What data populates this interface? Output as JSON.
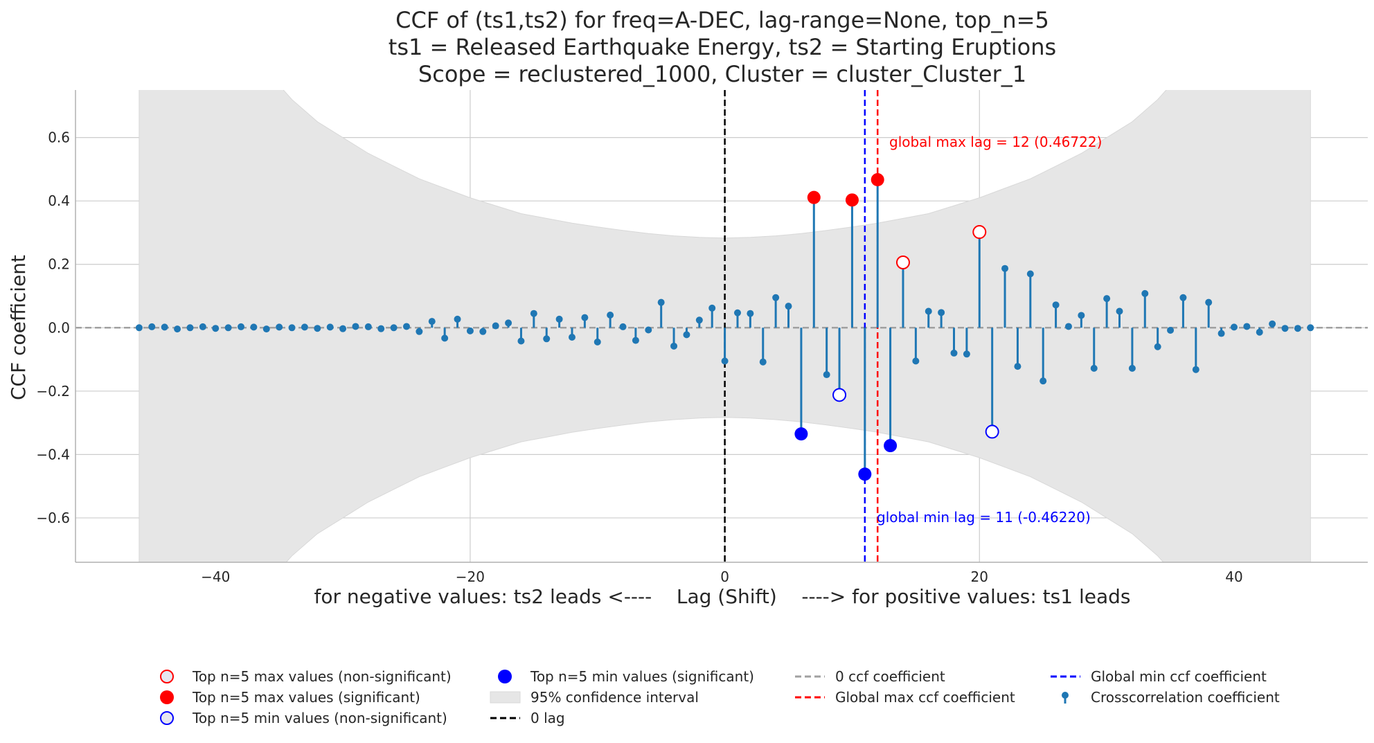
{
  "chart_data": {
    "type": "stem",
    "title": [
      "CCF of (ts1,ts2) for freq=A-DEC, lag-range=None, top_n=5",
      "ts1 = Released Earthquake Energy, ts2 = Starting Eruptions",
      "Scope = reclustered_1000, Cluster = cluster_Cluster_1"
    ],
    "xlabel": "for negative values: ts2 leads <----    Lag (Shift)    ----> for positive values: ts1 leads",
    "ylabel": "CCF coefficient",
    "xlim": [
      -51,
      50.5
    ],
    "ylim": [
      -0.74,
      0.75
    ],
    "xticks": [
      -40,
      -20,
      0,
      20,
      40
    ],
    "yticks": [
      -0.6,
      -0.4,
      -0.2,
      0.0,
      0.2,
      0.4,
      0.6
    ],
    "xtick_labels": [
      "−40",
      "−20",
      "0",
      "20",
      "40"
    ],
    "ytick_labels": [
      "−0.6",
      "−0.4",
      "−0.2",
      "0.0",
      "0.2",
      "0.4",
      "0.6"
    ],
    "grid": true,
    "colors": {
      "stem": "#1f77b4",
      "sig_max": "#ff0000",
      "sig_min": "#0000ff",
      "ci_fill": "#e6e6e6",
      "zero_line": "#a0a0a0",
      "zero_lag": "#000000",
      "grid": "#cccccc"
    },
    "lags": [
      -46,
      -45,
      -44,
      -43,
      -42,
      -41,
      -40,
      -39,
      -38,
      -37,
      -36,
      -35,
      -34,
      -33,
      -32,
      -31,
      -30,
      -29,
      -28,
      -27,
      -26,
      -25,
      -24,
      -23,
      -22,
      -21,
      -20,
      -19,
      -18,
      -17,
      -16,
      -15,
      -14,
      -13,
      -12,
      -11,
      -10,
      -9,
      -8,
      -7,
      -6,
      -5,
      -4,
      -3,
      -2,
      -1,
      0,
      1,
      2,
      3,
      4,
      5,
      6,
      7,
      8,
      9,
      10,
      11,
      12,
      13,
      14,
      15,
      16,
      17,
      18,
      19,
      20,
      21,
      22,
      23,
      24,
      25,
      26,
      27,
      28,
      29,
      30,
      31,
      32,
      33,
      34,
      35,
      36,
      37,
      38,
      39,
      40,
      41,
      42,
      43,
      44,
      45,
      46
    ],
    "ccf": [
      0.0,
      0.003,
      0.002,
      -0.004,
      0.0,
      0.003,
      -0.002,
      0.0,
      0.003,
      0.002,
      -0.004,
      0.002,
      0.0,
      0.002,
      -0.002,
      0.002,
      -0.003,
      0.004,
      0.003,
      -0.003,
      0.0,
      0.004,
      -0.012,
      0.02,
      -0.033,
      0.027,
      -0.01,
      -0.012,
      0.006,
      0.015,
      -0.042,
      0.045,
      -0.035,
      0.027,
      -0.03,
      0.032,
      -0.045,
      0.04,
      0.003,
      -0.04,
      -0.007,
      0.08,
      -0.058,
      -0.022,
      0.024,
      0.062,
      -0.105,
      0.047,
      0.045,
      -0.108,
      0.095,
      0.068,
      -0.335,
      0.411,
      -0.148,
      -0.212,
      0.403,
      -0.462,
      0.467,
      -0.372,
      0.206,
      -0.105,
      0.052,
      0.048,
      -0.08,
      -0.083,
      0.302,
      -0.328,
      0.187,
      -0.122,
      0.17,
      -0.168,
      0.072,
      0.004,
      0.039,
      -0.128,
      0.092,
      0.052,
      -0.128,
      0.108,
      -0.06,
      -0.008,
      0.095,
      -0.132,
      0.08,
      -0.018,
      0.002,
      0.004,
      -0.014,
      0.012,
      -0.002,
      -0.002,
      0.0
    ],
    "confidence_interval_95": {
      "lags": [
        -46,
        -44,
        -42,
        -40,
        -38,
        -36,
        -34,
        -32,
        -30,
        -28,
        -26,
        -24,
        -22,
        -20,
        -18,
        -16,
        -14,
        -12,
        -10,
        -8,
        -6,
        -4,
        -2,
        0,
        2,
        4,
        6,
        8,
        10,
        12,
        14,
        16,
        18,
        20,
        22,
        24,
        26,
        28,
        30,
        32,
        34,
        36,
        38,
        40,
        42,
        44,
        46
      ],
      "upper": [
        1.2,
        1.2,
        1.2,
        1.09,
        0.92,
        0.81,
        0.72,
        0.65,
        0.6,
        0.55,
        0.51,
        0.47,
        0.44,
        0.41,
        0.385,
        0.36,
        0.345,
        0.33,
        0.318,
        0.307,
        0.297,
        0.29,
        0.285,
        0.283,
        0.285,
        0.29,
        0.297,
        0.307,
        0.318,
        0.33,
        0.345,
        0.36,
        0.385,
        0.41,
        0.44,
        0.47,
        0.51,
        0.55,
        0.6,
        0.65,
        0.72,
        0.81,
        0.92,
        1.09,
        1.2,
        1.2,
        1.2
      ]
    },
    "top_max_significant": [
      {
        "lag": 7,
        "value": 0.411
      },
      {
        "lag": 10,
        "value": 0.403
      },
      {
        "lag": 12,
        "value": 0.467
      }
    ],
    "top_max_nonsignificant": [
      {
        "lag": 14,
        "value": 0.206
      },
      {
        "lag": 20,
        "value": 0.302
      }
    ],
    "top_min_significant": [
      {
        "lag": 6,
        "value": -0.335
      },
      {
        "lag": 11,
        "value": -0.462
      },
      {
        "lag": 13,
        "value": -0.372
      }
    ],
    "top_min_nonsignificant": [
      {
        "lag": 9,
        "value": -0.212
      },
      {
        "lag": 21,
        "value": -0.328
      }
    ],
    "global_max": {
      "lag": 12,
      "label": "global max lag = 12 (0.46722)"
    },
    "global_min": {
      "lag": 11,
      "label": "global min lag = 11 (-0.46220)"
    },
    "legend": {
      "placement": "bottom",
      "entries": [
        {
          "key": "top_max_nonsig",
          "label": "Top n=5 max values (non-significant)"
        },
        {
          "key": "top_max_sig",
          "label": "Top n=5 max values (significant)"
        },
        {
          "key": "top_min_nonsig",
          "label": "Top n=5 min values (non-significant)"
        },
        {
          "key": "top_min_sig",
          "label": "Top n=5 min values (significant)"
        },
        {
          "key": "ci",
          "label": "95% confidence interval"
        },
        {
          "key": "zero_lag",
          "label": "0 lag"
        },
        {
          "key": "zero_ccf",
          "label": "0 ccf coefficient"
        },
        {
          "key": "global_max_line",
          "label": "Global max ccf coefficient"
        },
        {
          "key": "global_min_line",
          "label": "Global min ccf coefficient"
        },
        {
          "key": "stem",
          "label": "Crosscorrelation coefficient"
        }
      ]
    }
  }
}
